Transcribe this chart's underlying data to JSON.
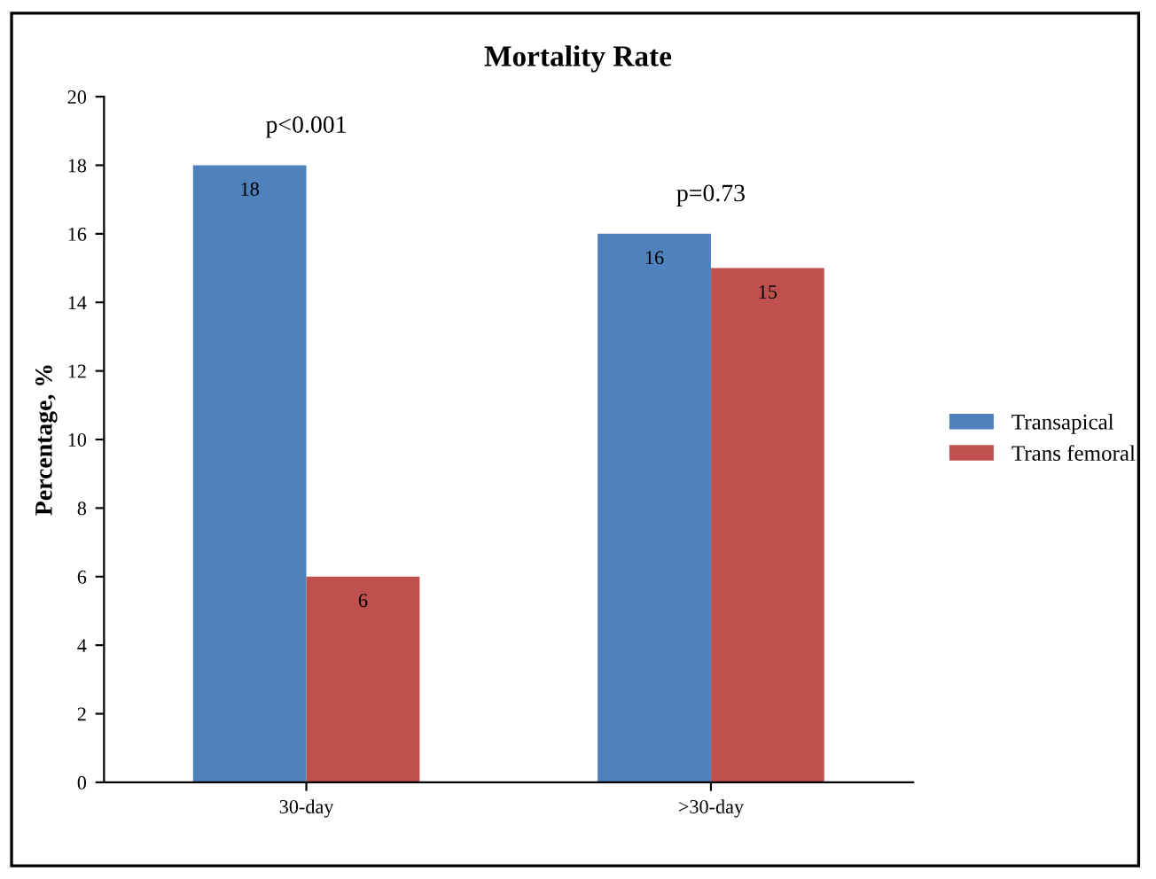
{
  "chart_data": {
    "type": "bar",
    "title": "Mortality Rate",
    "ylabel": "Percentage, %",
    "categories": [
      "30-day",
      ">30-day"
    ],
    "series": [
      {
        "name": "Transapical",
        "color": "#4f81bd",
        "values": [
          18,
          16
        ]
      },
      {
        "name": "Trans femoral",
        "color": "#c0504d",
        "values": [
          6,
          15
        ]
      }
    ],
    "ylim": [
      0,
      20
    ],
    "yticks": [
      0,
      2,
      4,
      6,
      8,
      10,
      12,
      14,
      16,
      18,
      20
    ],
    "data_labels": true,
    "legend": "right",
    "grid": false,
    "annotations": [
      "p<0.001",
      "p=0.73"
    ]
  }
}
